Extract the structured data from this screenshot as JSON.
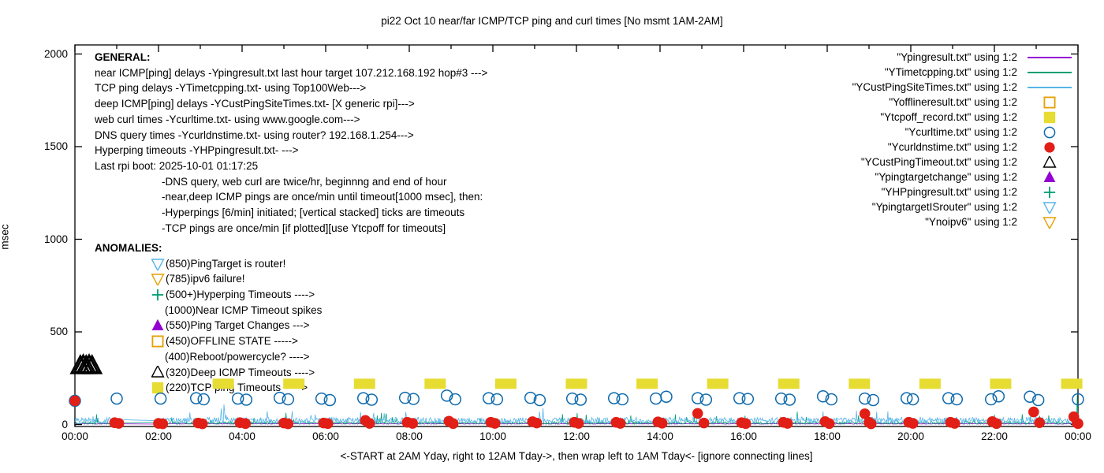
{
  "title": "pi22 Oct 10  near/far ICMP/TCP ping and curl times [No msmt 1AM-2AM]",
  "axes": {
    "ylabel": "msec",
    "xlabel": "<-START at 2AM Yday, right to 12AM Tday->, then wrap left to 1AM Tday<- [ignore connecting lines]",
    "yticks": [
      0,
      500,
      1000,
      1500,
      2000
    ],
    "xtick_labels": [
      "00:00",
      "02:00",
      "04:00",
      "06:00",
      "08:00",
      "10:00",
      "12:00",
      "14:00",
      "16:00",
      "18:00",
      "20:00",
      "22:00",
      "00:00"
    ],
    "xlim_hours": [
      0,
      24
    ],
    "ylim": [
      0,
      2000
    ]
  },
  "legend": {
    "items": [
      {
        "label": "\"Ypingresult.txt\" using 1:2",
        "marker": "line",
        "color": "#9400d3"
      },
      {
        "label": "\"YTimetcpping.txt\" using 1:2",
        "marker": "line",
        "color": "#009e73"
      },
      {
        "label": "\"YCustPingSiteTimes.txt\" using 1:2",
        "marker": "line",
        "color": "#56b4e9"
      },
      {
        "label": "\"Yofflineresult.txt\" using 1:2",
        "marker": "sq-open",
        "color": "#e69f00"
      },
      {
        "label": "\"Ytcpoff_record.txt\" using 1:2",
        "marker": "sq-fill",
        "color": "#e6dc32"
      },
      {
        "label": "\"Ycurltime.txt\" using 1:2",
        "marker": "circ-open",
        "color": "#0e6aad"
      },
      {
        "label": "\"Ycurldnstime.txt\" using 1:2",
        "marker": "circ-fill",
        "color": "#e21f16"
      },
      {
        "label": "\"YCustPingTimeout.txt\" using 1:2",
        "marker": "tri-open",
        "color": "#000000"
      },
      {
        "label": "\"Ypingtargetchange\" using 1:2",
        "marker": "tri-fill",
        "color": "#9400d3"
      },
      {
        "label": "\"YHPpingresult.txt\" using 1:2",
        "marker": "plus",
        "color": "#009e73"
      },
      {
        "label": "\"YpingtargetISrouter\" using 1:2",
        "marker": "tridown-open",
        "color": "#56b4e9"
      },
      {
        "label": "\"Ynoipv6\" using 1:2",
        "marker": "tridown-open",
        "color": "#e69f00"
      }
    ]
  },
  "annotations": {
    "general": {
      "heading": "GENERAL:",
      "lines": [
        "near ICMP[ping] delays -Ypingresult.txt last hour target 107.212.168.192 hop#3 --->",
        "TCP ping delays -YTimetcpping.txt- using Top100Web--->",
        "deep ICMP[ping] delays -YCustPingSiteTimes.txt- [X generic rpi]--->",
        "web curl times -Ycurltime.txt- using www.google.com--->",
        "DNS query times -Ycurldnstime.txt- using router? 192.168.1.254--->",
        "Hyperping timeouts -YHPpingresult.txt- --->",
        "Last rpi boot: 2025-10-01 01:17:25"
      ],
      "indented_lines": [
        "-DNS query, web curl are twice/hr, beginnng and end of hour",
        "-near,deep ICMP pings are once/min until timeout[1000 msec], then:",
        " -Hyperpings [6/min] initiated; [vertical stacked] ticks are timeouts",
        "-TCP pings are once/min [if plotted][use Ytcpoff for timeouts]"
      ]
    },
    "anomalies": {
      "heading": "ANOMALIES:",
      "items": [
        {
          "marker": "tridown-open",
          "color": "#56b4e9",
          "label": "(850)PingTarget is router!"
        },
        {
          "marker": "tridown-open",
          "color": "#e69f00",
          "label": "(785)ipv6 failure!"
        },
        {
          "marker": "plus",
          "color": "#009e73",
          "label": "(500+)Hyperping Timeouts ---->"
        },
        {
          "marker": "none",
          "color": "",
          "label": "(1000)Near ICMP Timeout spikes"
        },
        {
          "marker": "tri-fill",
          "color": "#9400d3",
          "label": "(550)Ping Target Changes --->"
        },
        {
          "marker": "sq-open",
          "color": "#e69f00",
          "label": "(450)OFFLINE STATE ----->"
        },
        {
          "marker": "none",
          "color": "",
          "label": "(400)Reboot/powercycle? ---->"
        },
        {
          "marker": "tri-open",
          "color": "#000000",
          "label": "(320)Deep ICMP Timeouts ---->"
        },
        {
          "marker": "sq-fill",
          "color": "#e6dc32",
          "label": "(220)TCP ping Timeouts ----->"
        }
      ]
    }
  },
  "chart_data": {
    "type": "line+scatter",
    "title": "pi22 Oct 10  near/far ICMP/TCP ping and curl times [No msmt 1AM-2AM]",
    "xlabel": "<-START at 2AM Yday, right to 12AM Tday->, then wrap left to 1AM Tday<- [ignore connecting lines]",
    "ylabel": "msec",
    "xlim_hours": [
      0,
      24
    ],
    "ylim": [
      0,
      2000
    ],
    "no_measurement_gap_hours": [
      1,
      2
    ],
    "series": [
      {
        "name": "Ypingresult.txt",
        "type": "line",
        "color": "#9400d3",
        "generator": {
          "seed": 11,
          "base": 2,
          "amp": 4,
          "spike_chance": 0,
          "spike_amp": 0
        },
        "spikes": []
      },
      {
        "name": "YTimetcpping.txt",
        "type": "line",
        "color": "#009e73",
        "generator": {
          "seed": 23,
          "base": 2,
          "amp": 14,
          "spike_chance": 0.04,
          "spike_amp": 55
        },
        "spikes": [
          [
            23.99,
            158
          ]
        ]
      },
      {
        "name": "YCustPingSiteTimes.txt",
        "type": "line",
        "color": "#56b4e9",
        "generator": {
          "seed": 57,
          "base": 7,
          "amp": 32,
          "spike_chance": 0.02,
          "spike_amp": 55
        },
        "spikes": [
          [
            3.56,
            108
          ],
          [
            11.2,
            88
          ]
        ]
      },
      {
        "name": "Ytcpoff_record.txt",
        "type": "scatter",
        "marker": "sq-fill",
        "color": "#e6dc32",
        "mw": 27,
        "mh": 13,
        "points": [
          [
            3.55,
            220
          ],
          [
            5.24,
            220
          ],
          [
            6.93,
            220
          ],
          [
            8.62,
            220
          ],
          [
            10.31,
            220
          ],
          [
            12.0,
            220
          ],
          [
            13.69,
            220
          ],
          [
            15.38,
            220
          ],
          [
            17.08,
            220
          ],
          [
            18.77,
            220
          ],
          [
            20.46,
            220
          ],
          [
            22.15,
            220
          ],
          [
            23.85,
            220
          ]
        ]
      },
      {
        "name": "Ycurltime.txt",
        "type": "scatter",
        "marker": "circ-open",
        "color": "#0e6aad",
        "ms": 7,
        "points": [
          [
            0.0,
            128
          ],
          [
            1.0,
            140
          ],
          [
            2.05,
            140
          ],
          [
            2.9,
            142
          ],
          [
            3.08,
            136
          ],
          [
            3.9,
            140
          ],
          [
            4.1,
            134
          ],
          [
            4.9,
            144
          ],
          [
            5.1,
            136
          ],
          [
            5.9,
            140
          ],
          [
            6.1,
            132
          ],
          [
            6.9,
            142
          ],
          [
            7.1,
            134
          ],
          [
            7.9,
            144
          ],
          [
            8.1,
            138
          ],
          [
            8.9,
            156
          ],
          [
            9.1,
            136
          ],
          [
            9.9,
            142
          ],
          [
            10.1,
            136
          ],
          [
            10.9,
            144
          ],
          [
            11.12,
            132
          ],
          [
            11.9,
            140
          ],
          [
            12.1,
            134
          ],
          [
            12.9,
            142
          ],
          [
            13.1,
            136
          ],
          [
            13.9,
            140
          ],
          [
            14.15,
            150
          ],
          [
            14.9,
            142
          ],
          [
            15.1,
            134
          ],
          [
            15.9,
            142
          ],
          [
            16.1,
            138
          ],
          [
            16.9,
            140
          ],
          [
            17.1,
            134
          ],
          [
            17.9,
            152
          ],
          [
            18.1,
            136
          ],
          [
            18.9,
            140
          ],
          [
            19.1,
            132
          ],
          [
            19.9,
            142
          ],
          [
            20.05,
            136
          ],
          [
            20.9,
            142
          ],
          [
            21.1,
            136
          ],
          [
            21.92,
            136
          ],
          [
            22.1,
            152
          ],
          [
            22.85,
            150
          ],
          [
            23.05,
            132
          ],
          [
            24.0,
            136
          ]
        ]
      },
      {
        "name": "Ycurldnstime.txt",
        "type": "scatter",
        "marker": "circ-fill",
        "color": "#e21f16",
        "ms": 6.8,
        "points": [
          [
            0.0,
            128
          ],
          [
            0.95,
            10
          ],
          [
            1.05,
            6
          ],
          [
            2.0,
            6
          ],
          [
            2.1,
            4
          ],
          [
            2.95,
            8
          ],
          [
            3.05,
            4
          ],
          [
            3.95,
            10
          ],
          [
            4.08,
            5
          ],
          [
            5.0,
            8
          ],
          [
            5.1,
            4
          ],
          [
            5.95,
            8
          ],
          [
            6.05,
            5
          ],
          [
            6.95,
            22
          ],
          [
            7.05,
            6
          ],
          [
            7.95,
            12
          ],
          [
            8.08,
            6
          ],
          [
            8.95,
            18
          ],
          [
            9.05,
            5
          ],
          [
            9.95,
            12
          ],
          [
            10.05,
            6
          ],
          [
            10.95,
            15
          ],
          [
            11.05,
            8
          ],
          [
            11.95,
            12
          ],
          [
            12.05,
            6
          ],
          [
            12.95,
            12
          ],
          [
            13.05,
            6
          ],
          [
            13.95,
            14
          ],
          [
            14.05,
            7
          ],
          [
            14.9,
            60
          ],
          [
            15.05,
            8
          ],
          [
            15.95,
            10
          ],
          [
            16.05,
            5
          ],
          [
            16.95,
            12
          ],
          [
            17.05,
            6
          ],
          [
            17.95,
            16
          ],
          [
            18.05,
            5
          ],
          [
            18.9,
            58
          ],
          [
            19.0,
            12
          ],
          [
            19.05,
            4
          ],
          [
            19.95,
            12
          ],
          [
            20.05,
            6
          ],
          [
            20.95,
            12
          ],
          [
            21.05,
            6
          ],
          [
            21.95,
            16
          ],
          [
            22.05,
            5
          ],
          [
            22.94,
            68
          ],
          [
            23.08,
            10
          ],
          [
            23.9,
            42
          ],
          [
            23.98,
            8
          ],
          [
            24.0,
            5
          ]
        ]
      },
      {
        "name": "YCustPingTimeout.txt",
        "type": "scatter",
        "marker": "tri-open",
        "color": "#000000",
        "ms": 9,
        "msw": 2.8,
        "points": [
          [
            0.13,
            316
          ],
          [
            0.2,
            320
          ],
          [
            0.27,
            316
          ],
          [
            0.34,
            320
          ],
          [
            0.41,
            316
          ]
        ]
      }
    ]
  }
}
